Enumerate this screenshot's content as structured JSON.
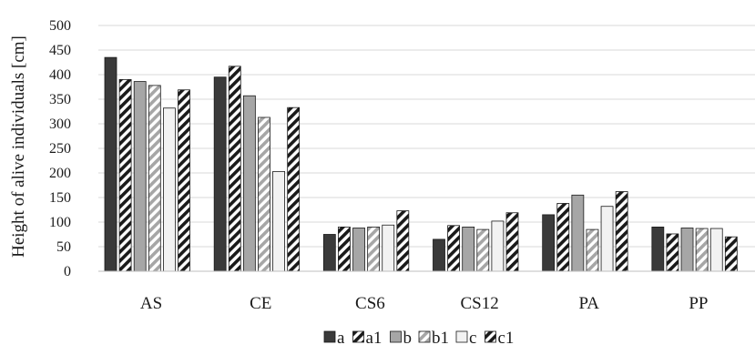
{
  "chart_data": {
    "type": "bar",
    "title": "",
    "xlabel": "",
    "ylabel": "Height of alive individuals [cm]",
    "ylim": [
      0,
      500
    ],
    "yticks": [
      0,
      50,
      100,
      150,
      200,
      250,
      300,
      350,
      400,
      450,
      500
    ],
    "grid": true,
    "legend_position": "bottom",
    "categories": [
      "AS",
      "CE",
      "CS6",
      "CS12",
      "PA",
      "PP"
    ],
    "series": [
      {
        "name": "a",
        "values": [
          435,
          395,
          75,
          65,
          115,
          90
        ],
        "fill": "#3a3a3a",
        "pattern": "solid"
      },
      {
        "name": "a1",
        "values": [
          390,
          417,
          90,
          93,
          138,
          76
        ],
        "fill": "#1a1a1a",
        "pattern": "hatch"
      },
      {
        "name": "b",
        "values": [
          386,
          357,
          88,
          90,
          155,
          88
        ],
        "fill": "#a6a6a6",
        "pattern": "solid"
      },
      {
        "name": "b1",
        "values": [
          378,
          313,
          90,
          85,
          85,
          87
        ],
        "fill": "#a6a6a6",
        "pattern": "hatch-light"
      },
      {
        "name": "c",
        "values": [
          332,
          203,
          94,
          102,
          132,
          87
        ],
        "fill": "#f2f2f2",
        "pattern": "solid"
      },
      {
        "name": "c1",
        "values": [
          369,
          333,
          123,
          119,
          162,
          70
        ],
        "fill": "#1a1a1a",
        "pattern": "hatch"
      }
    ]
  }
}
